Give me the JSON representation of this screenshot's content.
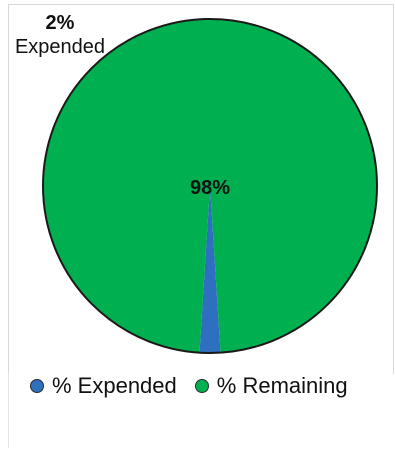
{
  "chart_data": {
    "type": "pie",
    "slices": [
      {
        "name": "% Expended",
        "value": 2,
        "color": "#2e6fc0"
      },
      {
        "name": "% Remaining",
        "value": 98,
        "color": "#00b050"
      }
    ],
    "data_labels": {
      "expended_pct": "2%",
      "expended_name": "Expended",
      "remaining_pct": "98%"
    },
    "legend": {
      "position": "bottom",
      "items": [
        {
          "label": "% Expended",
          "color": "#2e6fc0"
        },
        {
          "label": "% Remaining",
          "color": "#00b050"
        }
      ]
    }
  }
}
